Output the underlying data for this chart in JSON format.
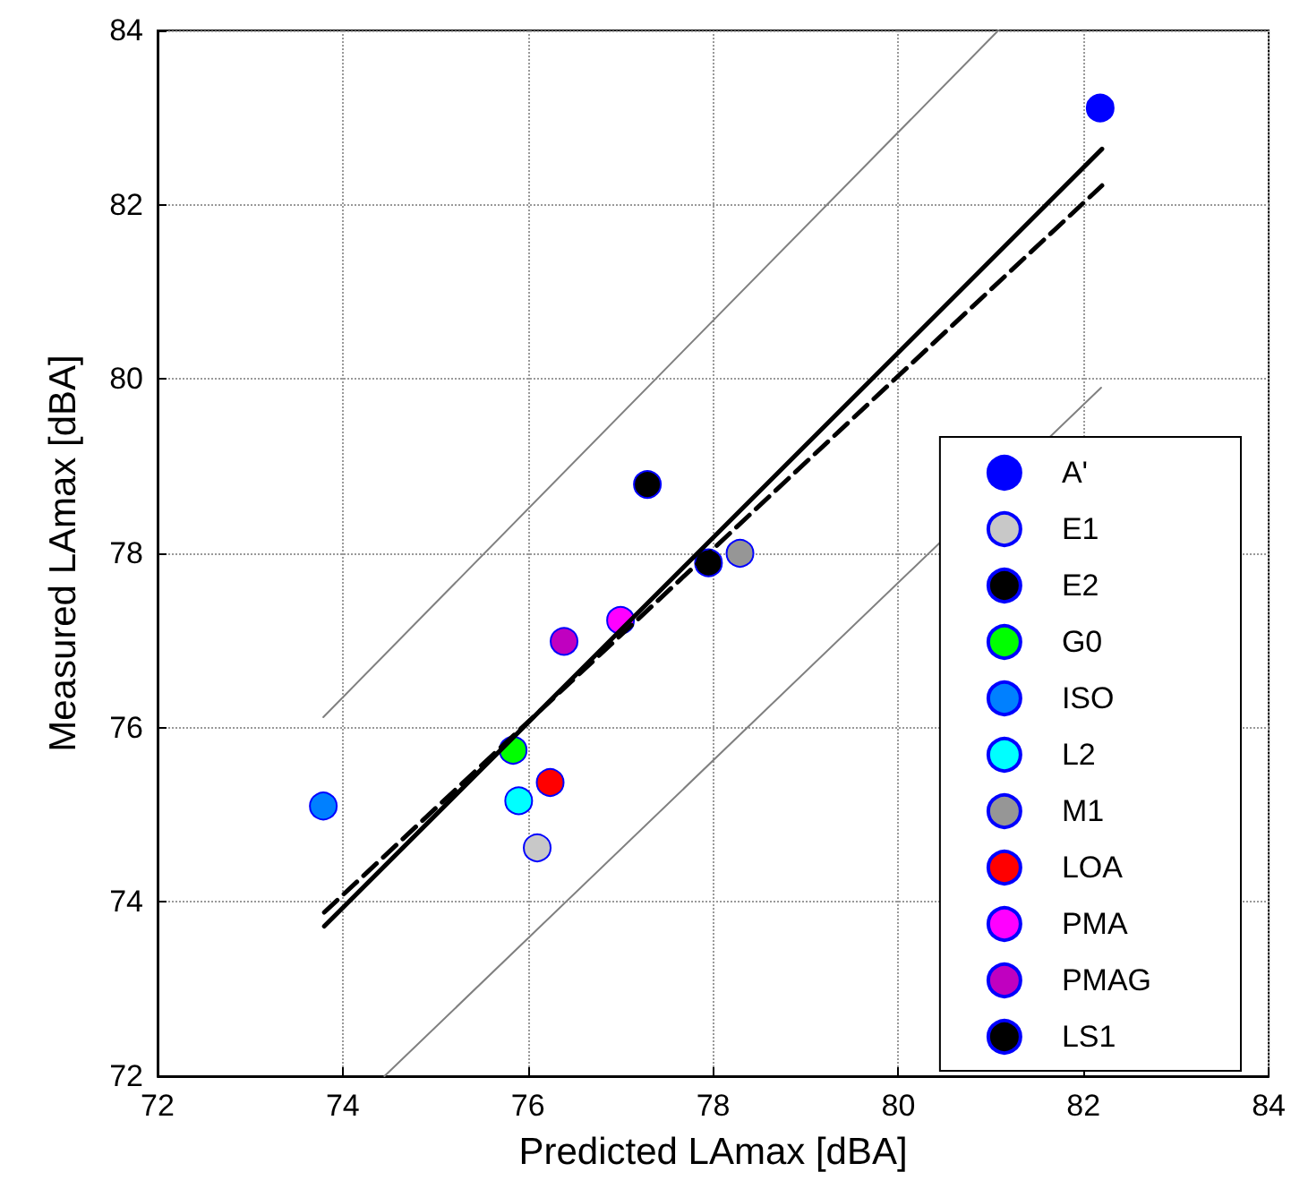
{
  "chart_data": {
    "type": "scatter",
    "xlabel": "Predicted LAmax [dBA]",
    "ylabel": "Measured LAmax [dBA]",
    "xlim": [
      72,
      84
    ],
    "xticks": [
      72,
      74,
      76,
      78,
      80,
      82,
      84
    ],
    "ylim": [
      72,
      84
    ],
    "yticks": [
      72,
      74,
      76,
      78,
      80,
      82,
      84
    ],
    "grid": true,
    "legend": "bottom right",
    "marker": "circle",
    "series": [
      {
        "name": "A'",
        "color": "#0000ff",
        "x": [
          82.18
        ],
        "values": [
          83.11
        ]
      },
      {
        "name": "E1",
        "color": "#c8c8c8",
        "x": [
          76.1
        ],
        "values": [
          74.62
        ]
      },
      {
        "name": "E2",
        "color": "#000000",
        "x": [
          77.29
        ],
        "values": [
          78.79
        ]
      },
      {
        "name": "G0",
        "color": "#00ff00",
        "x": [
          75.84
        ],
        "values": [
          75.74
        ]
      },
      {
        "name": "ISO",
        "color": "#0080ff",
        "x": [
          73.79
        ],
        "values": [
          75.1
        ]
      },
      {
        "name": "L2",
        "color": "#00ffff",
        "x": [
          75.9
        ],
        "values": [
          75.16
        ]
      },
      {
        "name": "M1",
        "color": "#969696",
        "x": [
          78.29
        ],
        "values": [
          78.0
        ]
      },
      {
        "name": "LOA",
        "color": "#ff0000",
        "x": [
          76.24
        ],
        "values": [
          75.37
        ]
      },
      {
        "name": "PMA",
        "color": "#ff00ff",
        "x": [
          77.0
        ],
        "values": [
          77.23
        ]
      },
      {
        "name": "PMAG",
        "color": "#c000c0",
        "x": [
          76.39
        ],
        "values": [
          76.99
        ]
      },
      {
        "name": "LS1",
        "color": "#000000",
        "x": [
          77.95
        ],
        "values": [
          77.89
        ]
      },
      {
        "type": "line",
        "color": "#000000",
        "line_style": "solid",
        "marker": "none",
        "x": [
          73.8,
          82.2
        ],
        "values": [
          73.72,
          82.64
        ]
      },
      {
        "type": "line",
        "color": "#000000",
        "line_style": "dashed",
        "marker": "none",
        "x": [
          73.8,
          82.2
        ],
        "values": [
          73.88,
          82.22
        ]
      },
      {
        "type": "line",
        "color": "#808080",
        "line_style": "solid",
        "marker": "none",
        "x": [
          73.79,
          81.08
        ],
        "values": [
          76.12,
          84
        ]
      },
      {
        "type": "line",
        "color": "#808080",
        "line_style": "solid",
        "marker": "none",
        "x": [
          74.45,
          82.19
        ],
        "values": [
          72,
          79.9
        ]
      }
    ]
  }
}
